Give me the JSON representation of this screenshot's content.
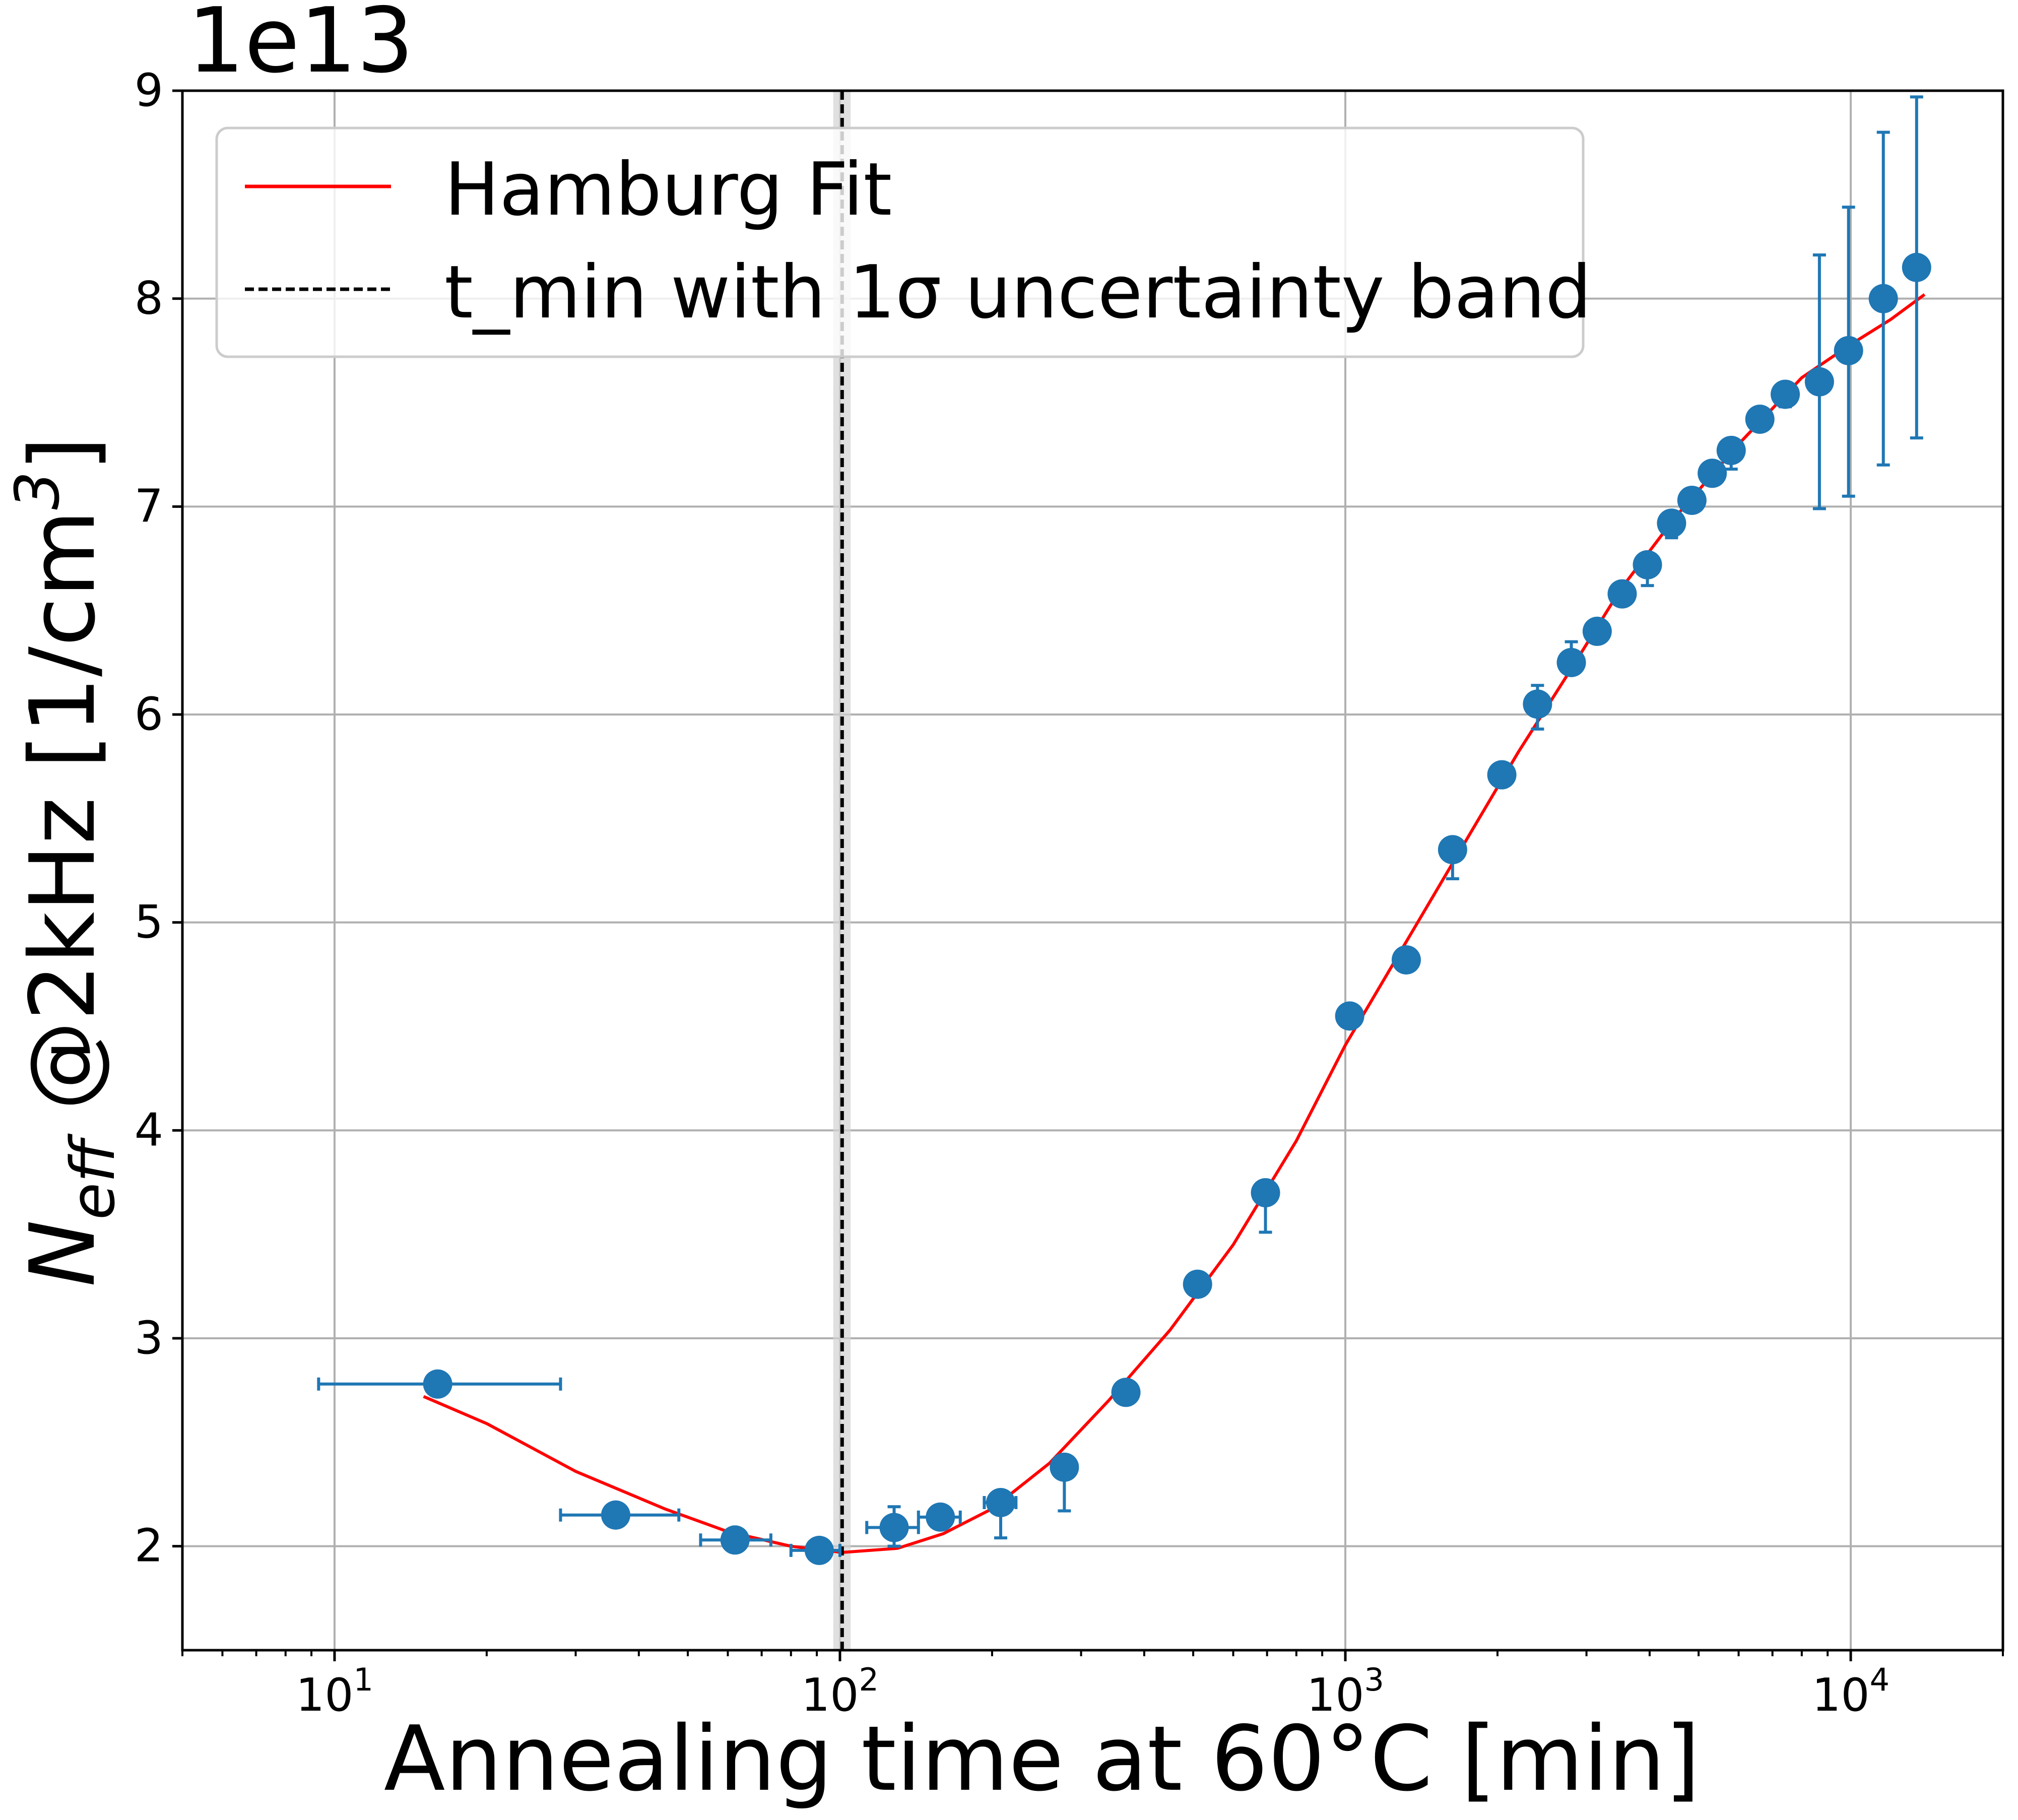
{
  "colors": {
    "marker": "#1f77b4",
    "fit_line": "#ff0000",
    "vline": "#000000",
    "band": "#d3d3d3",
    "grid": "#b0b0b0"
  },
  "chart_data": {
    "type": "scatter",
    "xscale": "log",
    "xlim": [
      5,
      20000
    ],
    "ylim": [
      1.5,
      9.0
    ],
    "y_multiplier_label": "1e13",
    "xlabel": "Annealing time at 60°C [min]",
    "ylabel": {
      "prefix": "N",
      "subscript": "eff",
      "suffix": " @2kHz [1/cm",
      "superscript": "3",
      "closing": "]"
    },
    "grid": true,
    "x_ticks": [
      {
        "value": 10,
        "base": "10",
        "exp": "1"
      },
      {
        "value": 100,
        "base": "10",
        "exp": "2"
      },
      {
        "value": 1000,
        "base": "10",
        "exp": "3"
      },
      {
        "value": 10000,
        "base": "10",
        "exp": "4"
      }
    ],
    "y_ticks": [
      {
        "value": 2,
        "label": "2"
      },
      {
        "value": 3,
        "label": "3"
      },
      {
        "value": 4,
        "label": "4"
      },
      {
        "value": 5,
        "label": "5"
      },
      {
        "value": 6,
        "label": "6"
      },
      {
        "value": 7,
        "label": "7"
      },
      {
        "value": 8,
        "label": "8"
      },
      {
        "value": 9,
        "label": "9"
      }
    ],
    "legend": {
      "position": "upper-left",
      "entries": [
        {
          "label": "Hamburg Fit",
          "style": "solid-red"
        },
        {
          "label": "t_min with 1σ uncertainty band",
          "style": "dashed-black"
        }
      ]
    },
    "t_min": {
      "value": 101,
      "band": [
        97,
        105
      ]
    },
    "fit_curve": [
      [
        15,
        2.72
      ],
      [
        20,
        2.59
      ],
      [
        30,
        2.36
      ],
      [
        45,
        2.18
      ],
      [
        60,
        2.07
      ],
      [
        80,
        2.0
      ],
      [
        101,
        1.97
      ],
      [
        130,
        1.99
      ],
      [
        160,
        2.06
      ],
      [
        200,
        2.18
      ],
      [
        260,
        2.4
      ],
      [
        340,
        2.7
      ],
      [
        450,
        3.04
      ],
      [
        600,
        3.45
      ],
      [
        800,
        3.95
      ],
      [
        1000,
        4.41
      ],
      [
        1300,
        4.88
      ],
      [
        1700,
        5.36
      ],
      [
        2200,
        5.82
      ],
      [
        2800,
        6.22
      ],
      [
        3500,
        6.6
      ],
      [
        4500,
        6.95
      ],
      [
        6000,
        7.3
      ],
      [
        8000,
        7.62
      ],
      [
        10000,
        7.78
      ],
      [
        12000,
        7.9
      ],
      [
        14000,
        8.02
      ]
    ],
    "points": [
      {
        "x": 16,
        "y": 2.78,
        "xerr": [
          9.3,
          28
        ]
      },
      {
        "x": 36,
        "y": 2.15,
        "xerr": [
          28,
          48
        ]
      },
      {
        "x": 62,
        "y": 2.03,
        "xerr": [
          53,
          73
        ]
      },
      {
        "x": 91,
        "y": 1.98,
        "xerr": [
          80,
          100
        ]
      },
      {
        "x": 128,
        "y": 2.09,
        "yerr": [
          2.0,
          2.19
        ],
        "xerr": [
          113,
          143
        ]
      },
      {
        "x": 158,
        "y": 2.14,
        "xerr": [
          143,
          173
        ]
      },
      {
        "x": 208,
        "y": 2.21,
        "yerr": [
          2.04,
          2.26
        ],
        "xerr": [
          193,
          223
        ]
      },
      {
        "x": 278,
        "y": 2.38,
        "yerr": [
          2.17,
          2.4
        ],
        "xerr": [
          268,
          288
        ]
      },
      {
        "x": 368,
        "y": 2.74
      },
      {
        "x": 510,
        "y": 3.26
      },
      {
        "x": 695,
        "y": 3.7,
        "yerr": [
          3.51,
          3.72
        ]
      },
      {
        "x": 1020,
        "y": 4.55
      },
      {
        "x": 1320,
        "y": 4.82
      },
      {
        "x": 1630,
        "y": 5.35,
        "yerr": [
          5.21,
          5.37
        ]
      },
      {
        "x": 2040,
        "y": 5.71
      },
      {
        "x": 2400,
        "y": 6.05,
        "yerr": [
          5.93,
          6.14
        ]
      },
      {
        "x": 2800,
        "y": 6.25,
        "yerr": [
          6.2,
          6.35
        ]
      },
      {
        "x": 3150,
        "y": 6.4
      },
      {
        "x": 3530,
        "y": 6.58
      },
      {
        "x": 3960,
        "y": 6.72,
        "yerr": [
          6.62,
          6.74
        ]
      },
      {
        "x": 4420,
        "y": 6.92,
        "yerr": [
          6.85,
          6.93
        ]
      },
      {
        "x": 4850,
        "y": 7.03
      },
      {
        "x": 5320,
        "y": 7.16
      },
      {
        "x": 5800,
        "y": 7.27,
        "yerr": [
          7.18,
          7.28
        ]
      },
      {
        "x": 6610,
        "y": 7.42
      },
      {
        "x": 7420,
        "y": 7.54,
        "yerr": [
          7.48,
          7.55
        ]
      },
      {
        "x": 8670,
        "y": 7.6,
        "yerr": [
          6.99,
          8.21
        ]
      },
      {
        "x": 9900,
        "y": 7.75,
        "yerr": [
          7.05,
          8.44
        ]
      },
      {
        "x": 11600,
        "y": 8.0,
        "yerr": [
          7.2,
          8.8
        ]
      },
      {
        "x": 13500,
        "y": 8.15,
        "yerr": [
          7.33,
          8.97
        ]
      }
    ]
  }
}
